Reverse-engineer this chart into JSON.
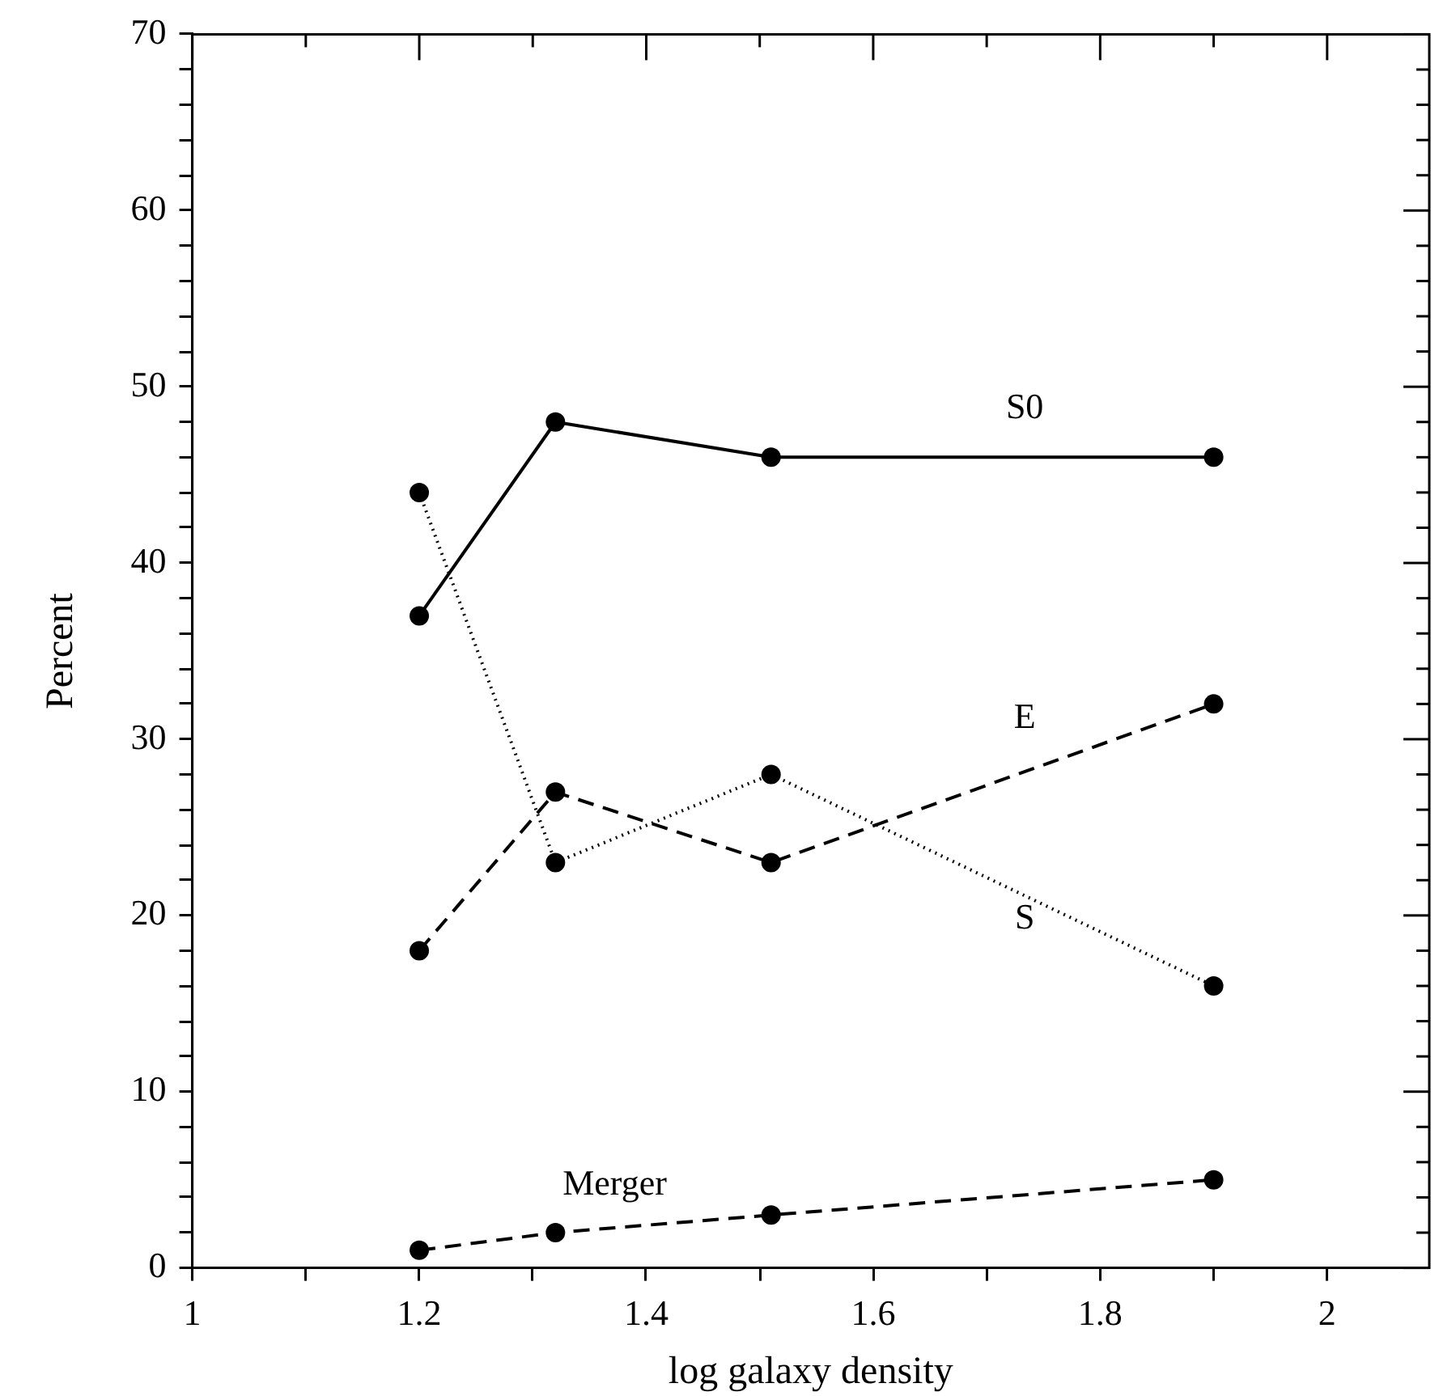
{
  "chart_data": {
    "type": "line",
    "xlabel": "log galaxy density",
    "ylabel": "Percent",
    "xlim": [
      1,
      2.09
    ],
    "xticks": [
      1,
      {
        "value": 1.1,
        "label": null
      },
      1.2,
      {
        "value": 1.3,
        "label": null
      },
      1.4,
      {
        "value": 1.5,
        "label": null
      },
      1.6,
      {
        "value": 1.7,
        "label": null
      },
      1.8,
      {
        "value": 1.9,
        "label": null
      },
      2
    ],
    "ylim": [
      0,
      70
    ],
    "yticks": [
      0,
      {
        "value": 2,
        "label": null
      },
      {
        "value": 4,
        "label": null
      },
      {
        "value": 6,
        "label": null
      },
      {
        "value": 8,
        "label": null
      },
      10,
      {
        "value": 12,
        "label": null
      },
      {
        "value": 14,
        "label": null
      },
      {
        "value": 16,
        "label": null
      },
      {
        "value": 18,
        "label": null
      },
      20,
      {
        "value": 22,
        "label": null
      },
      {
        "value": 24,
        "label": null
      },
      {
        "value": 26,
        "label": null
      },
      {
        "value": 28,
        "label": null
      },
      30,
      {
        "value": 32,
        "label": null
      },
      {
        "value": 34,
        "label": null
      },
      {
        "value": 36,
        "label": null
      },
      {
        "value": 38,
        "label": null
      },
      40,
      {
        "value": 42,
        "label": null
      },
      {
        "value": 44,
        "label": null
      },
      {
        "value": 46,
        "label": null
      },
      {
        "value": 48,
        "label": null
      },
      50,
      {
        "value": 52,
        "label": null
      },
      {
        "value": 54,
        "label": null
      },
      {
        "value": 56,
        "label": null
      },
      {
        "value": 58,
        "label": null
      },
      60,
      {
        "value": 62,
        "label": null
      },
      {
        "value": 64,
        "label": null
      },
      {
        "value": 66,
        "label": null
      },
      {
        "value": 68,
        "label": null
      },
      70
    ],
    "x": [
      1.2,
      1.32,
      1.51,
      1.9
    ],
    "series": [
      {
        "name": "S0",
        "color": "#000000",
        "line_style": "solid",
        "values": [
          37,
          48,
          46,
          46
        ]
      },
      {
        "name": "E",
        "color": "#000000",
        "line_style": "dashed",
        "values": [
          18,
          27,
          23,
          32
        ]
      },
      {
        "name": "S",
        "color": "#000000",
        "line_style": "dotted",
        "values": [
          44,
          23,
          28,
          16
        ]
      },
      {
        "name": "Merger",
        "color": "#000000",
        "line_style": "dashed",
        "values": [
          1,
          2,
          3,
          5
        ]
      }
    ],
    "marker": "circle",
    "grid": false,
    "legend": false
  }
}
